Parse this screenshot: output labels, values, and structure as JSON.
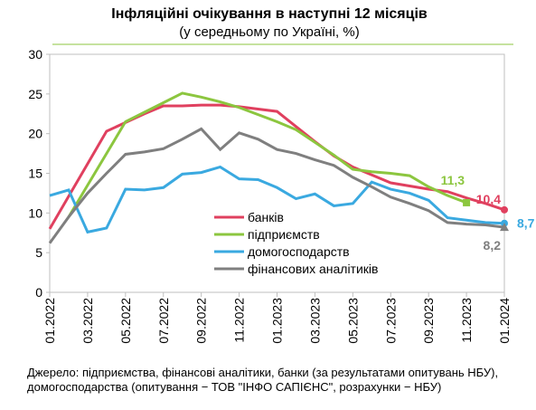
{
  "chart_data": {
    "type": "line",
    "title": "Інфляційні очікування в наступні 12 місяців",
    "subtitle": "(у середньому по Україні, %)",
    "categories": [
      "01.2022",
      null,
      "03.2022",
      null,
      "05.2022",
      null,
      "07.2022",
      null,
      "09.2022",
      null,
      "11.2022",
      null,
      "01.2023",
      null,
      "03.2023",
      null,
      "05.2023",
      null,
      "07.2023",
      null,
      "09.2023",
      null,
      "11.2023",
      null,
      "01.2024"
    ],
    "series": [
      {
        "name": "банків",
        "color": "#e0405f",
        "values": [
          8.0,
          12.1,
          16.2,
          20.3,
          21.4,
          22.5,
          23.5,
          23.5,
          23.6,
          23.6,
          23.4,
          23.1,
          22.8,
          20.9,
          19.0,
          17.2,
          15.8,
          14.8,
          13.8,
          13.4,
          13.0,
          12.7,
          11.9,
          11.2,
          10.4
        ],
        "value_labels": [
          null,
          null,
          null,
          null,
          null,
          null,
          null,
          null,
          null,
          null,
          null,
          null,
          null,
          null,
          null,
          null,
          null,
          null,
          null,
          null,
          null,
          null,
          null,
          null,
          "10,4"
        ]
      },
      {
        "name": "підприємств",
        "color": "#8cc63f",
        "values": [
          null,
          9.5,
          13.5,
          17.5,
          21.5,
          22.7,
          23.9,
          25.1,
          24.6,
          24.0,
          23.3,
          22.4,
          21.5,
          20.5,
          18.9,
          17.3,
          15.5,
          15.2,
          15.0,
          14.7,
          13.3,
          12.2,
          11.3,
          null,
          null
        ],
        "value_labels": [
          null,
          null,
          null,
          null,
          null,
          null,
          null,
          null,
          null,
          null,
          null,
          null,
          null,
          null,
          null,
          null,
          null,
          null,
          null,
          null,
          null,
          null,
          "11,3",
          null,
          null
        ]
      },
      {
        "name": "домогосподарств",
        "color": "#3aa9e0",
        "values": [
          12.2,
          12.9,
          7.6,
          8.1,
          13.0,
          12.9,
          13.2,
          14.9,
          15.1,
          15.8,
          14.3,
          14.2,
          13.2,
          11.8,
          12.4,
          10.9,
          11.2,
          13.9,
          13.0,
          12.5,
          11.6,
          9.4,
          9.1,
          8.8,
          8.7
        ],
        "value_labels": [
          null,
          null,
          null,
          null,
          null,
          null,
          null,
          null,
          null,
          null,
          null,
          null,
          null,
          null,
          null,
          null,
          null,
          null,
          null,
          null,
          null,
          null,
          null,
          null,
          "8,7"
        ]
      },
      {
        "name": "фінансових аналітиків",
        "color": "#7f7f7f",
        "values": [
          6.2,
          9.5,
          12.5,
          15.0,
          17.4,
          17.7,
          18.1,
          19.3,
          20.6,
          18.0,
          20.1,
          19.3,
          18.0,
          17.5,
          16.7,
          16.0,
          14.5,
          13.3,
          12.0,
          11.2,
          10.3,
          8.8,
          8.6,
          8.5,
          8.2
        ],
        "value_labels": [
          null,
          null,
          null,
          null,
          null,
          null,
          null,
          null,
          null,
          null,
          null,
          null,
          null,
          null,
          null,
          null,
          null,
          null,
          null,
          null,
          null,
          null,
          null,
          null,
          "8,2"
        ]
      }
    ],
    "ylim": [
      0,
      30
    ],
    "yticks": [
      0,
      5,
      10,
      15,
      20,
      25,
      30
    ],
    "source": [
      "Джерело: підприємства, фінансові аналітики, банки (за результатами опитувань НБУ),",
      "домогосподарства (опитування − ТОВ \"ІНФО САПІЄНС\", розрахунки − НБУ)"
    ]
  }
}
